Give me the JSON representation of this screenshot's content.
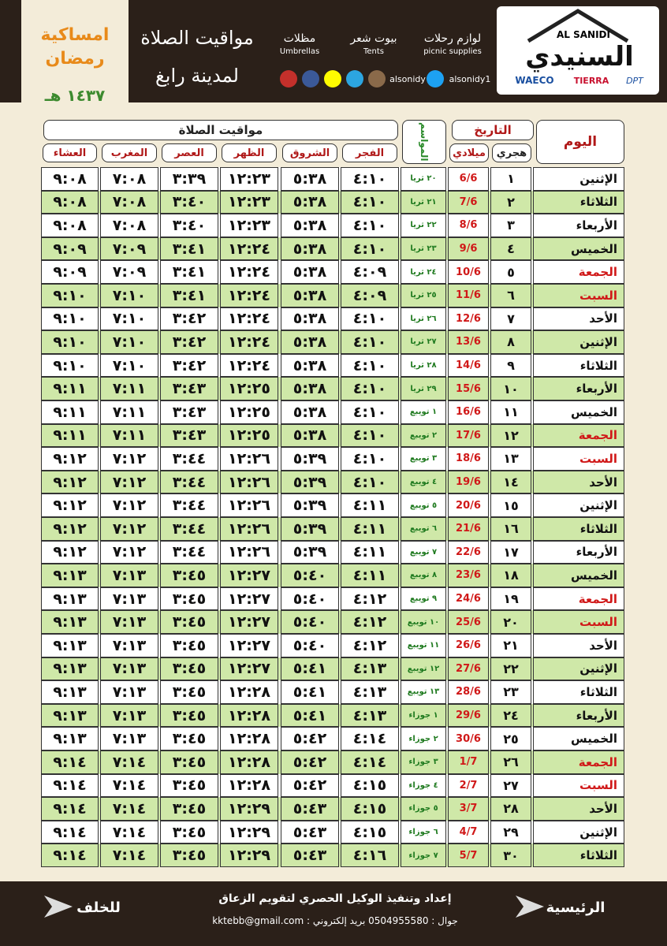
{
  "header": {
    "title": "مواقيت الصلاة",
    "city": "لمدينة رابغ",
    "brand_en": "AL SANIDI",
    "brand_ar": "السنيدي",
    "partners": [
      "WAECO",
      "TIERRA",
      "DPT"
    ],
    "products": [
      {
        "ar": "لوازم رحلات",
        "en": "picnic supplies"
      },
      {
        "ar": "بيوت شعر",
        "en": "Tents"
      },
      {
        "ar": "مظلات",
        "en": "Umbrellas"
      }
    ],
    "handles": [
      "alsonidy1",
      "alsonidy"
    ],
    "ramadan": "امساكية رمضان",
    "year": "١٤٣٧ هـ"
  },
  "table": {
    "headers": {
      "day": "اليوم",
      "date": "التاريخ",
      "hijri": "هجري",
      "gregorian": "ميلادي",
      "seasons": "المواسم",
      "prayers_title": "مواقيت الصلاة",
      "prayers": [
        "الفجر",
        "الشروق",
        "الظهر",
        "العصر",
        "المغرب",
        "العشاء"
      ]
    },
    "rows": [
      [
        "الإثنين",
        "١",
        "6/6",
        "٢٠ ثريا",
        "٤:١٠",
        "٥:٣٨",
        "١٢:٢٣",
        "٣:٣٩",
        "٧:٠٨",
        "٩:٠٨"
      ],
      [
        "الثلاثاء",
        "٢",
        "7/6",
        "٢١ ثريا",
        "٤:١٠",
        "٥:٣٨",
        "١٢:٢٣",
        "٣:٤٠",
        "٧:٠٨",
        "٩:٠٨"
      ],
      [
        "الأربعاء",
        "٣",
        "8/6",
        "٢٢ ثريا",
        "٤:١٠",
        "٥:٣٨",
        "١٢:٢٣",
        "٣:٤٠",
        "٧:٠٨",
        "٩:٠٨"
      ],
      [
        "الخميس",
        "٤",
        "9/6",
        "٢٣ ثريا",
        "٤:١٠",
        "٥:٣٨",
        "١٢:٢٤",
        "٣:٤١",
        "٧:٠٩",
        "٩:٠٩"
      ],
      [
        "الجمعة",
        "٥",
        "10/6",
        "٢٤ ثريا",
        "٤:٠٩",
        "٥:٣٨",
        "١٢:٢٤",
        "٣:٤١",
        "٧:٠٩",
        "٩:٠٩"
      ],
      [
        "السبت",
        "٦",
        "11/6",
        "٢٥ ثريا",
        "٤:٠٩",
        "٥:٣٨",
        "١٢:٢٤",
        "٣:٤١",
        "٧:١٠",
        "٩:١٠"
      ],
      [
        "الأحد",
        "٧",
        "12/6",
        "٢٦ ثريا",
        "٤:١٠",
        "٥:٣٨",
        "١٢:٢٤",
        "٣:٤٢",
        "٧:١٠",
        "٩:١٠"
      ],
      [
        "الإثنين",
        "٨",
        "13/6",
        "٢٧ ثريا",
        "٤:١٠",
        "٥:٣٨",
        "١٢:٢٤",
        "٣:٤٢",
        "٧:١٠",
        "٩:١٠"
      ],
      [
        "الثلاثاء",
        "٩",
        "14/6",
        "٢٨ ثريا",
        "٤:١٠",
        "٥:٣٨",
        "١٢:٢٤",
        "٣:٤٢",
        "٧:١٠",
        "٩:١٠"
      ],
      [
        "الأربعاء",
        "١٠",
        "15/6",
        "٢٩ ثريا",
        "٤:١٠",
        "٥:٣٨",
        "١٢:٢٥",
        "٣:٤٣",
        "٧:١١",
        "٩:١١"
      ],
      [
        "الخميس",
        "١١",
        "16/6",
        "١ تويبع",
        "٤:١٠",
        "٥:٣٨",
        "١٢:٢٥",
        "٣:٤٣",
        "٧:١١",
        "٩:١١"
      ],
      [
        "الجمعة",
        "١٢",
        "17/6",
        "٢ تويبع",
        "٤:١٠",
        "٥:٣٨",
        "١٢:٢٥",
        "٣:٤٣",
        "٧:١١",
        "٩:١١"
      ],
      [
        "السبت",
        "١٣",
        "18/6",
        "٣ تويبع",
        "٤:١٠",
        "٥:٣٩",
        "١٢:٢٦",
        "٣:٤٤",
        "٧:١٢",
        "٩:١٢"
      ],
      [
        "الأحد",
        "١٤",
        "19/6",
        "٤ تويبع",
        "٤:١٠",
        "٥:٣٩",
        "١٢:٢٦",
        "٣:٤٤",
        "٧:١٢",
        "٩:١٢"
      ],
      [
        "الإثنين",
        "١٥",
        "20/6",
        "٥ تويبع",
        "٤:١١",
        "٥:٣٩",
        "١٢:٢٦",
        "٣:٤٤",
        "٧:١٢",
        "٩:١٢"
      ],
      [
        "الثلاثاء",
        "١٦",
        "21/6",
        "٦ تويبع",
        "٤:١١",
        "٥:٣٩",
        "١٢:٢٦",
        "٣:٤٤",
        "٧:١٢",
        "٩:١٢"
      ],
      [
        "الأربعاء",
        "١٧",
        "22/6",
        "٧ تويبع",
        "٤:١١",
        "٥:٣٩",
        "١٢:٢٦",
        "٣:٤٤",
        "٧:١٢",
        "٩:١٢"
      ],
      [
        "الخميس",
        "١٨",
        "23/6",
        "٨ تويبع",
        "٤:١١",
        "٥:٤٠",
        "١٢:٢٧",
        "٣:٤٥",
        "٧:١٣",
        "٩:١٣"
      ],
      [
        "الجمعة",
        "١٩",
        "24/6",
        "٩ تويبع",
        "٤:١٢",
        "٥:٤٠",
        "١٢:٢٧",
        "٣:٤٥",
        "٧:١٣",
        "٩:١٣"
      ],
      [
        "السبت",
        "٢٠",
        "25/6",
        "١٠ تويبع",
        "٤:١٢",
        "٥:٤٠",
        "١٢:٢٧",
        "٣:٤٥",
        "٧:١٣",
        "٩:١٣"
      ],
      [
        "الأحد",
        "٢١",
        "26/6",
        "١١ تويبع",
        "٤:١٢",
        "٥:٤٠",
        "١٢:٢٧",
        "٣:٤٥",
        "٧:١٣",
        "٩:١٣"
      ],
      [
        "الإثنين",
        "٢٢",
        "27/6",
        "١٢ تويبع",
        "٤:١٣",
        "٥:٤١",
        "١٢:٢٧",
        "٣:٤٥",
        "٧:١٣",
        "٩:١٣"
      ],
      [
        "الثلاثاء",
        "٢٣",
        "28/6",
        "١٣ تويبع",
        "٤:١٣",
        "٥:٤١",
        "١٢:٢٨",
        "٣:٤٥",
        "٧:١٣",
        "٩:١٣"
      ],
      [
        "الأربعاء",
        "٢٤",
        "29/6",
        "١ جوزاء",
        "٤:١٣",
        "٥:٤١",
        "١٢:٢٨",
        "٣:٤٥",
        "٧:١٣",
        "٩:١٣"
      ],
      [
        "الخميس",
        "٢٥",
        "30/6",
        "٢ جوزاء",
        "٤:١٤",
        "٥:٤٢",
        "١٢:٢٨",
        "٣:٤٥",
        "٧:١٣",
        "٩:١٣"
      ],
      [
        "الجمعة",
        "٢٦",
        "1/7",
        "٣ جوزاء",
        "٤:١٤",
        "٥:٤٢",
        "١٢:٢٨",
        "٣:٤٥",
        "٧:١٤",
        "٩:١٤"
      ],
      [
        "السبت",
        "٢٧",
        "2/7",
        "٤ جوزاء",
        "٤:١٥",
        "٥:٤٢",
        "١٢:٢٨",
        "٣:٤٥",
        "٧:١٤",
        "٩:١٤"
      ],
      [
        "الأحد",
        "٢٨",
        "3/7",
        "٥ جوزاء",
        "٤:١٥",
        "٥:٤٣",
        "١٢:٢٩",
        "٣:٤٥",
        "٧:١٤",
        "٩:١٤"
      ],
      [
        "الإثنين",
        "٢٩",
        "4/7",
        "٦ جوزاء",
        "٤:١٥",
        "٥:٤٣",
        "١٢:٢٩",
        "٣:٤٥",
        "٧:١٤",
        "٩:١٤"
      ],
      [
        "الثلاثاء",
        "٣٠",
        "5/7",
        "٧ جوزاء",
        "٤:١٦",
        "٥:٤٣",
        "١٢:٢٩",
        "٣:٤٥",
        "٧:١٤",
        "٩:١٤"
      ]
    ]
  },
  "footer": {
    "credit": "إعداد وتنفيذ الوكيل الحصري لتقويم الزعاق",
    "contact": "جوال : 0504955580   بريد إلكتروني : kktebb@gmail.com",
    "home": "الرئيسية",
    "back": "للخلف"
  }
}
